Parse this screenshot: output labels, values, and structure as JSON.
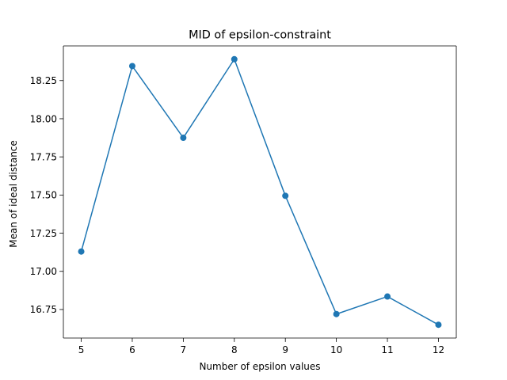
{
  "chart_data": {
    "type": "line",
    "title": "MID of epsilon-constraint",
    "xlabel": "Number of epsilon values",
    "ylabel": "Mean of ideal distance",
    "x": [
      5,
      6,
      7,
      8,
      9,
      10,
      11,
      12
    ],
    "series": [
      {
        "values": [
          17.13,
          18.345,
          17.875,
          18.39,
          17.495,
          16.72,
          16.835,
          16.65
        ],
        "color": "#1f77b4",
        "marker": "circle"
      }
    ],
    "xlim": [
      4.65,
      12.35
    ],
    "ylim": [
      16.563,
      18.477
    ],
    "xticks": [
      5,
      6,
      7,
      8,
      9,
      10,
      11,
      12
    ],
    "yticks": [
      16.75,
      17.0,
      17.25,
      17.5,
      17.75,
      18.0,
      18.25
    ],
    "ytick_labels": [
      "16.75",
      "17.00",
      "17.25",
      "17.50",
      "17.75",
      "18.00",
      "18.25"
    ],
    "grid": false,
    "legend": "none"
  }
}
